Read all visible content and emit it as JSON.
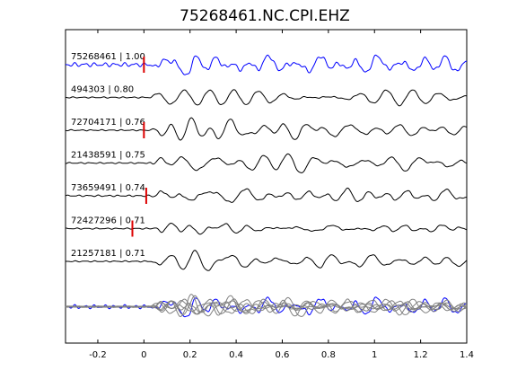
{
  "chart_data": {
    "type": "line",
    "title": "75268461.NC.CPI.EHZ",
    "xlabel": "",
    "ylabel": "",
    "xlim": [
      -0.34,
      1.4
    ],
    "x_ticks": [
      -0.2,
      0,
      0.2,
      0.4,
      0.6,
      0.8,
      1.0,
      1.2,
      1.4
    ],
    "x_tick_labels": [
      "-0.2",
      "0",
      "0.2",
      "0.4",
      "0.6",
      "0.8",
      "1",
      "1.2",
      "1.4"
    ],
    "grid": false,
    "legend": "none",
    "colors": {
      "master": "#0000ff",
      "trace": "#000000",
      "stack": "#808080",
      "pick": "#dd0000"
    },
    "series": [
      {
        "name": "75268461 | 1.00",
        "color": "#0000ff",
        "pick_time": 0.0,
        "seed": 1,
        "noise": 0.1,
        "amp": 1.0
      },
      {
        "name": "494303 | 0.80",
        "color": "#000000",
        "pick_time": null,
        "seed": 2,
        "noise": 0.03,
        "amp": 1.0
      },
      {
        "name": "72704171 | 0.76",
        "color": "#000000",
        "pick_time": 0.0,
        "seed": 3,
        "noise": 0.03,
        "amp": 1.0
      },
      {
        "name": "21438591 | 0.75",
        "color": "#000000",
        "pick_time": null,
        "seed": 4,
        "noise": 0.03,
        "amp": 1.0
      },
      {
        "name": "73659491 | 0.74",
        "color": "#000000",
        "pick_time": 0.01,
        "seed": 5,
        "noise": 0.04,
        "amp": 1.0
      },
      {
        "name": "72427296 | 0.71",
        "color": "#000000",
        "pick_time": -0.05,
        "seed": 6,
        "noise": 0.03,
        "amp": 0.55
      },
      {
        "name": "21257181 | 0.71",
        "color": "#000000",
        "pick_time": null,
        "seed": 7,
        "noise": 0.03,
        "amp": 1.0
      }
    ]
  }
}
